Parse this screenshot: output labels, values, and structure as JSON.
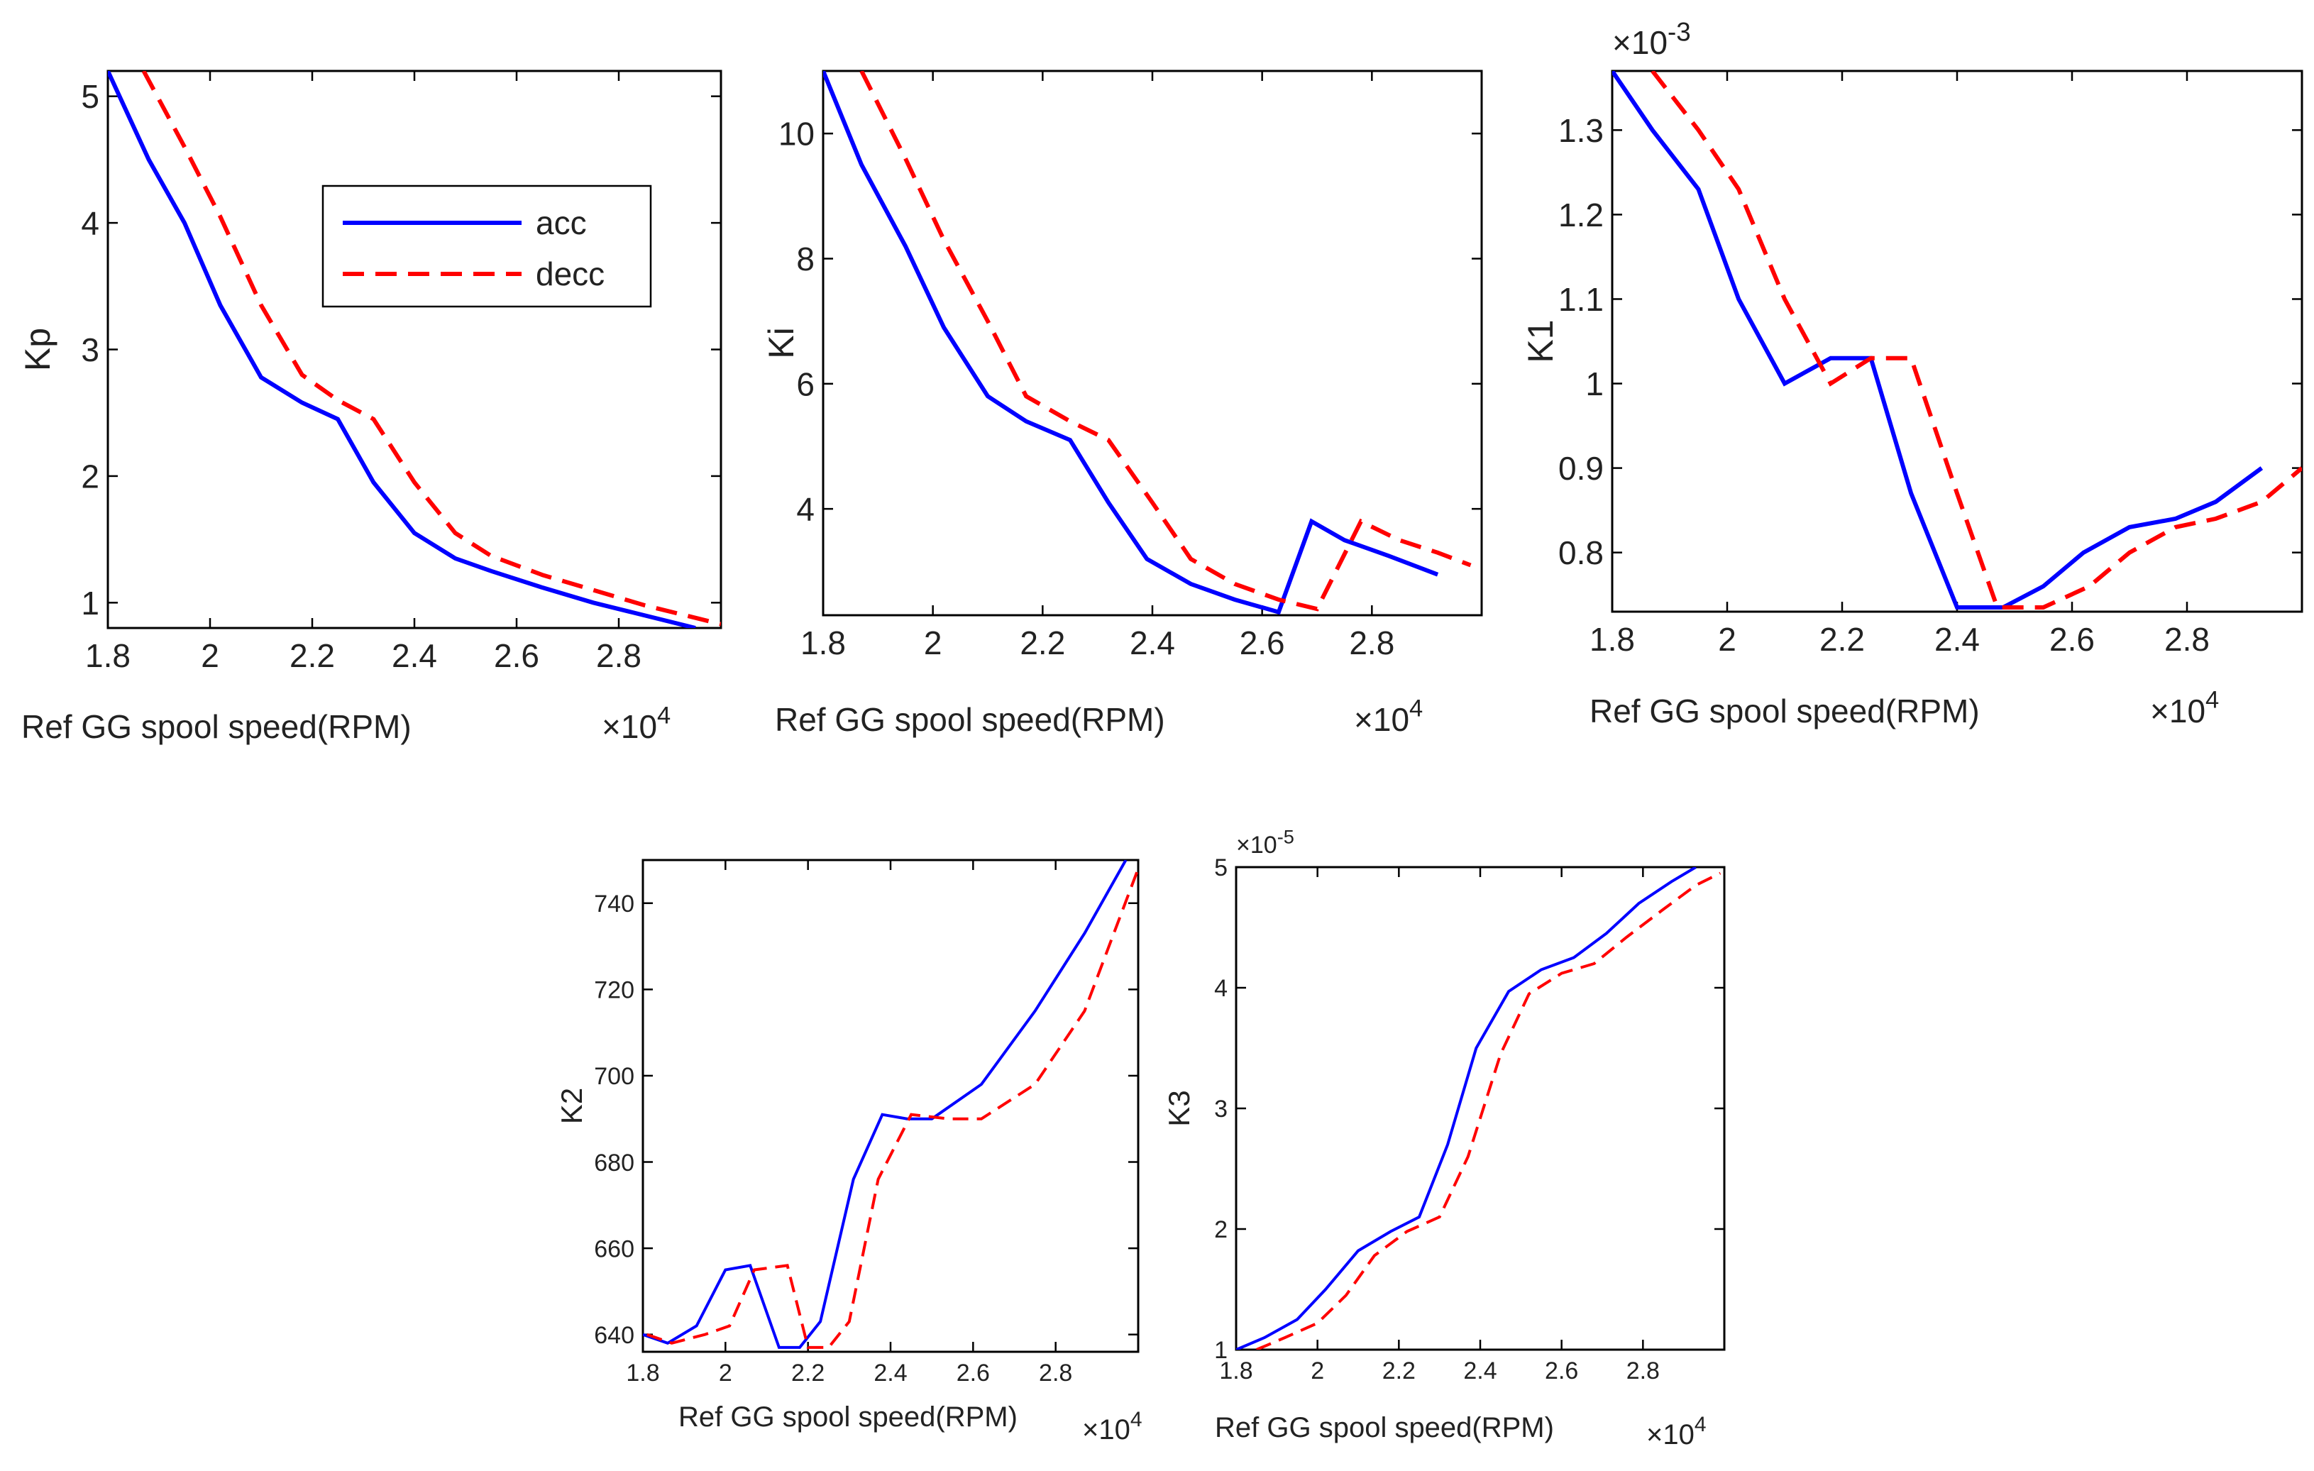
{
  "legend": {
    "acc": "acc",
    "decc": "decc"
  },
  "colors": {
    "acc": "#0000ff",
    "decc": "#ff0000",
    "axes": "#000000",
    "text": "#222222"
  },
  "chart_data": [
    {
      "id": "kp",
      "type": "line",
      "title": "",
      "xlabel": "Ref GG spool speed(RPM)",
      "xmultiplier": "×10",
      "xmultiplier_exp": "4",
      "ylabel": "Kp",
      "ymultiplier": "",
      "ymultiplier_exp": "",
      "xlim": [
        1.8,
        3.0
      ],
      "ylim": [
        0.8,
        5.2
      ],
      "xticks": [
        1.8,
        2.0,
        2.2,
        2.4,
        2.6,
        2.8
      ],
      "xtick_labels": [
        "1.8",
        "2",
        "2.2",
        "2.4",
        "2.6",
        "2.8"
      ],
      "yticks": [
        1,
        2,
        3,
        4,
        5
      ],
      "ytick_labels": [
        "1",
        "2",
        "3",
        "4",
        "5"
      ],
      "legend_visible": true,
      "legend_position": "upper-right-inside",
      "series": [
        {
          "name": "acc",
          "style": "solid",
          "x": [
            1.8,
            1.88,
            1.95,
            2.02,
            2.1,
            2.18,
            2.25,
            2.32,
            2.4,
            2.48,
            2.55,
            2.65,
            2.75,
            2.82,
            2.95
          ],
          "y": [
            5.2,
            4.5,
            4.0,
            3.35,
            2.78,
            2.58,
            2.45,
            1.95,
            1.55,
            1.35,
            1.25,
            1.12,
            1.0,
            0.93,
            0.8
          ]
        },
        {
          "name": "decc",
          "style": "dashed",
          "x": [
            1.87,
            1.95,
            2.02,
            2.1,
            2.18,
            2.25,
            2.32,
            2.4,
            2.48,
            2.55,
            2.65,
            2.75,
            2.85,
            2.95,
            3.0
          ],
          "y": [
            5.2,
            4.6,
            4.05,
            3.35,
            2.8,
            2.6,
            2.45,
            1.95,
            1.55,
            1.37,
            1.22,
            1.1,
            0.98,
            0.88,
            0.83
          ]
        }
      ]
    },
    {
      "id": "ki",
      "type": "line",
      "title": "",
      "xlabel": "Ref GG spool speed(RPM)",
      "xmultiplier": "×10",
      "xmultiplier_exp": "4",
      "ylabel": "Ki",
      "ymultiplier": "",
      "ymultiplier_exp": "",
      "xlim": [
        1.8,
        3.0
      ],
      "ylim": [
        2.3,
        11.0
      ],
      "xticks": [
        1.8,
        2.0,
        2.2,
        2.4,
        2.6,
        2.8
      ],
      "xtick_labels": [
        "1.8",
        "2",
        "2.2",
        "2.4",
        "2.6",
        "2.8"
      ],
      "yticks": [
        4,
        6,
        8,
        10
      ],
      "ytick_labels": [
        "4",
        "6",
        "8",
        "10"
      ],
      "legend_visible": false,
      "legend_position": "",
      "series": [
        {
          "name": "acc",
          "style": "solid",
          "x": [
            1.8,
            1.87,
            1.95,
            2.02,
            2.1,
            2.17,
            2.25,
            2.32,
            2.39,
            2.47,
            2.55,
            2.63,
            2.69,
            2.75,
            2.83,
            2.92
          ],
          "y": [
            11.0,
            9.5,
            8.2,
            6.9,
            5.8,
            5.4,
            5.1,
            4.1,
            3.2,
            2.8,
            2.55,
            2.35,
            3.8,
            3.5,
            3.25,
            2.95
          ]
        },
        {
          "name": "decc",
          "style": "dashed",
          "x": [
            1.87,
            1.95,
            2.02,
            2.1,
            2.17,
            2.25,
            2.32,
            2.4,
            2.47,
            2.55,
            2.63,
            2.7,
            2.78,
            2.85,
            2.92,
            2.98
          ],
          "y": [
            11.0,
            9.6,
            8.3,
            7.0,
            5.8,
            5.4,
            5.1,
            4.1,
            3.2,
            2.8,
            2.55,
            2.4,
            3.8,
            3.5,
            3.3,
            3.1
          ]
        }
      ]
    },
    {
      "id": "k1",
      "type": "line",
      "title": "",
      "xlabel": "Ref GG spool speed(RPM)",
      "xmultiplier": "×10",
      "xmultiplier_exp": "4",
      "ylabel": "K1",
      "ymultiplier": "×10",
      "ymultiplier_exp": "-3",
      "xlim": [
        1.8,
        3.0
      ],
      "ylim": [
        0.73,
        1.37
      ],
      "xticks": [
        1.8,
        2.0,
        2.2,
        2.4,
        2.6,
        2.8
      ],
      "xtick_labels": [
        "1.8",
        "2",
        "2.2",
        "2.4",
        "2.6",
        "2.8"
      ],
      "yticks": [
        0.8,
        0.9,
        1.0,
        1.1,
        1.2,
        1.3
      ],
      "ytick_labels": [
        "0.8",
        "0.9",
        "1",
        "1.1",
        "1.2",
        "1.3"
      ],
      "legend_visible": false,
      "legend_position": "",
      "series": [
        {
          "name": "acc",
          "style": "solid",
          "x": [
            1.8,
            1.87,
            1.95,
            2.02,
            2.1,
            2.18,
            2.25,
            2.32,
            2.4,
            2.48,
            2.55,
            2.62,
            2.7,
            2.78,
            2.85,
            2.93
          ],
          "y": [
            1.37,
            1.3,
            1.23,
            1.1,
            1.0,
            1.03,
            1.03,
            0.87,
            0.735,
            0.735,
            0.76,
            0.8,
            0.83,
            0.84,
            0.86,
            0.9
          ]
        },
        {
          "name": "decc",
          "style": "dashed",
          "x": [
            1.87,
            1.95,
            2.02,
            2.1,
            2.18,
            2.25,
            2.32,
            2.4,
            2.47,
            2.55,
            2.63,
            2.7,
            2.78,
            2.85,
            2.93,
            3.0
          ],
          "y": [
            1.37,
            1.3,
            1.23,
            1.1,
            1.0,
            1.03,
            1.03,
            0.87,
            0.735,
            0.735,
            0.76,
            0.8,
            0.83,
            0.84,
            0.86,
            0.9
          ]
        }
      ]
    },
    {
      "id": "k2",
      "type": "line",
      "title": "",
      "xlabel": "Ref GG spool speed(RPM)",
      "xmultiplier": "×10",
      "xmultiplier_exp": "4",
      "ylabel": "K2",
      "ymultiplier": "",
      "ymultiplier_exp": "",
      "xlim": [
        1.8,
        3.0
      ],
      "ylim": [
        636,
        750
      ],
      "xticks": [
        1.8,
        2.0,
        2.2,
        2.4,
        2.6,
        2.8
      ],
      "xtick_labels": [
        "1.8",
        "2",
        "2.2",
        "2.4",
        "2.6",
        "2.8"
      ],
      "yticks": [
        640,
        660,
        680,
        700,
        720,
        740
      ],
      "ytick_labels": [
        "640",
        "660",
        "680",
        "700",
        "720",
        "740"
      ],
      "legend_visible": false,
      "legend_position": "",
      "series": [
        {
          "name": "acc",
          "style": "solid",
          "x": [
            1.8,
            1.86,
            1.93,
            2.0,
            2.06,
            2.13,
            2.18,
            2.23,
            2.31,
            2.38,
            2.44,
            2.5,
            2.62,
            2.75,
            2.87,
            2.97
          ],
          "y": [
            640,
            638,
            642,
            655,
            656,
            637,
            637,
            643,
            676,
            691,
            690,
            690,
            698,
            715,
            733,
            750
          ]
        },
        {
          "name": "decc",
          "style": "dashed",
          "x": [
            1.81,
            1.87,
            1.95,
            2.01,
            2.07,
            2.15,
            2.2,
            2.25,
            2.3,
            2.37,
            2.45,
            2.54,
            2.62,
            2.75,
            2.87,
            3.0
          ],
          "y": [
            640,
            638,
            640,
            642,
            655,
            656,
            637,
            637,
            643,
            676,
            691,
            690,
            690,
            698,
            715,
            748
          ]
        }
      ]
    },
    {
      "id": "k3",
      "type": "line",
      "title": "",
      "xlabel": "Ref GG spool speed(RPM)",
      "xmultiplier": "×10",
      "xmultiplier_exp": "4",
      "ylabel": "K3",
      "ymultiplier": "×10",
      "ymultiplier_exp": "-5",
      "xlim": [
        1.8,
        3.0
      ],
      "ylim": [
        1.0,
        5.0
      ],
      "xticks": [
        1.8,
        2.0,
        2.2,
        2.4,
        2.6,
        2.8
      ],
      "xtick_labels": [
        "1.8",
        "2",
        "2.2",
        "2.4",
        "2.6",
        "2.8"
      ],
      "yticks": [
        1,
        2,
        3,
        4,
        5
      ],
      "ytick_labels": [
        "1",
        "2",
        "3",
        "4",
        "5"
      ],
      "legend_visible": false,
      "legend_position": "",
      "series": [
        {
          "name": "acc",
          "style": "solid",
          "x": [
            1.8,
            1.87,
            1.95,
            2.02,
            2.1,
            2.18,
            2.25,
            2.32,
            2.39,
            2.47,
            2.55,
            2.63,
            2.71,
            2.79,
            2.87,
            2.93
          ],
          "y": [
            1.0,
            1.1,
            1.25,
            1.5,
            1.82,
            1.98,
            2.1,
            2.7,
            3.5,
            3.97,
            4.15,
            4.25,
            4.45,
            4.7,
            4.88,
            5.0
          ]
        },
        {
          "name": "decc",
          "style": "dashed",
          "x": [
            1.85,
            1.92,
            2.0,
            2.07,
            2.14,
            2.22,
            2.3,
            2.37,
            2.45,
            2.52,
            2.6,
            2.68,
            2.76,
            2.85,
            2.93,
            2.99
          ],
          "y": [
            1.0,
            1.1,
            1.22,
            1.45,
            1.78,
            1.98,
            2.1,
            2.6,
            3.45,
            3.95,
            4.12,
            4.2,
            4.42,
            4.65,
            4.85,
            4.95
          ]
        }
      ]
    }
  ]
}
